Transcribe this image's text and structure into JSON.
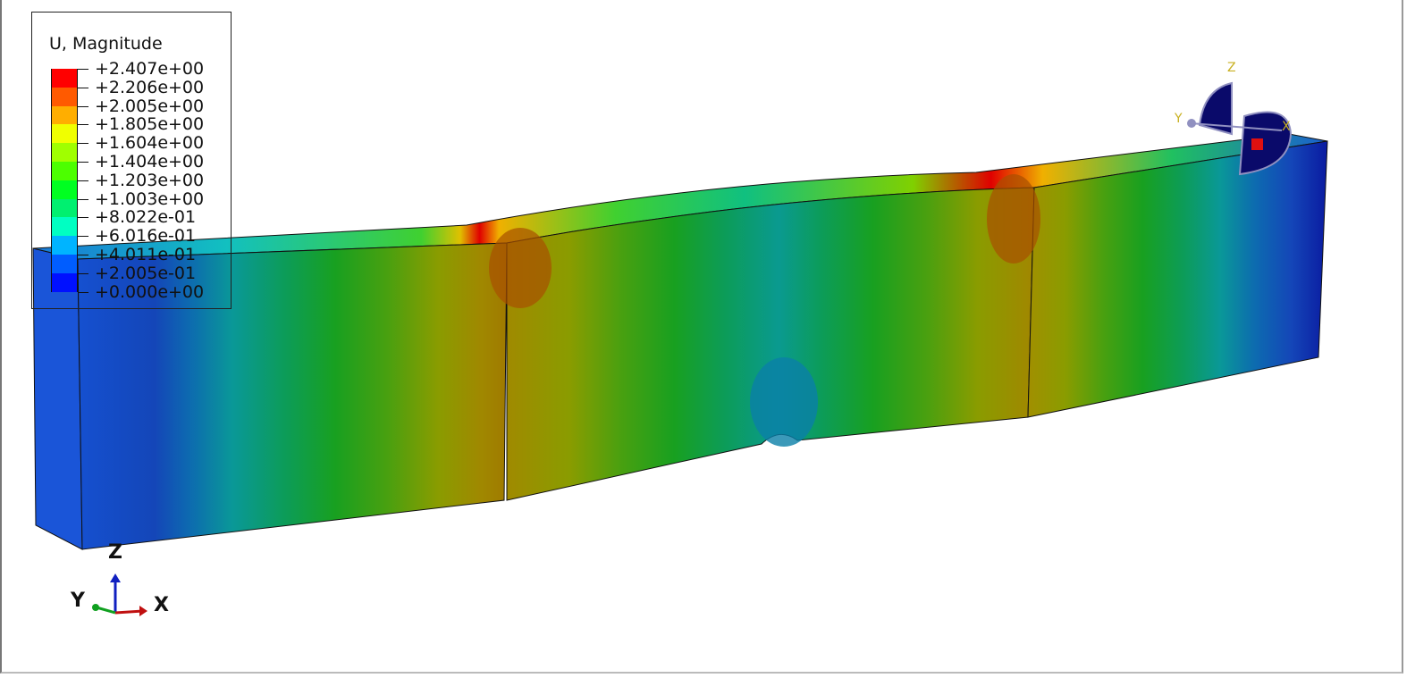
{
  "legend": {
    "title": "U, Magnitude",
    "values": [
      "+2.407e+00",
      "+2.206e+00",
      "+2.005e+00",
      "+1.805e+00",
      "+1.604e+00",
      "+1.404e+00",
      "+1.203e+00",
      "+1.003e+00",
      "+8.022e-01",
      "+6.016e-01",
      "+4.011e-01",
      "+2.005e-01",
      "+0.000e+00"
    ],
    "colors": [
      "#ff0000",
      "#ff5a00",
      "#ffae00",
      "#f0ff00",
      "#a0ff00",
      "#4cff00",
      "#00ff21",
      "#00f070",
      "#00ffc2",
      "#00b4ff",
      "#005dff",
      "#0010ff"
    ]
  },
  "triad": {
    "z": "Z",
    "y": "Y",
    "x": "X"
  },
  "view_cube": {
    "z": "Z",
    "y": "Y",
    "x": "X"
  }
}
